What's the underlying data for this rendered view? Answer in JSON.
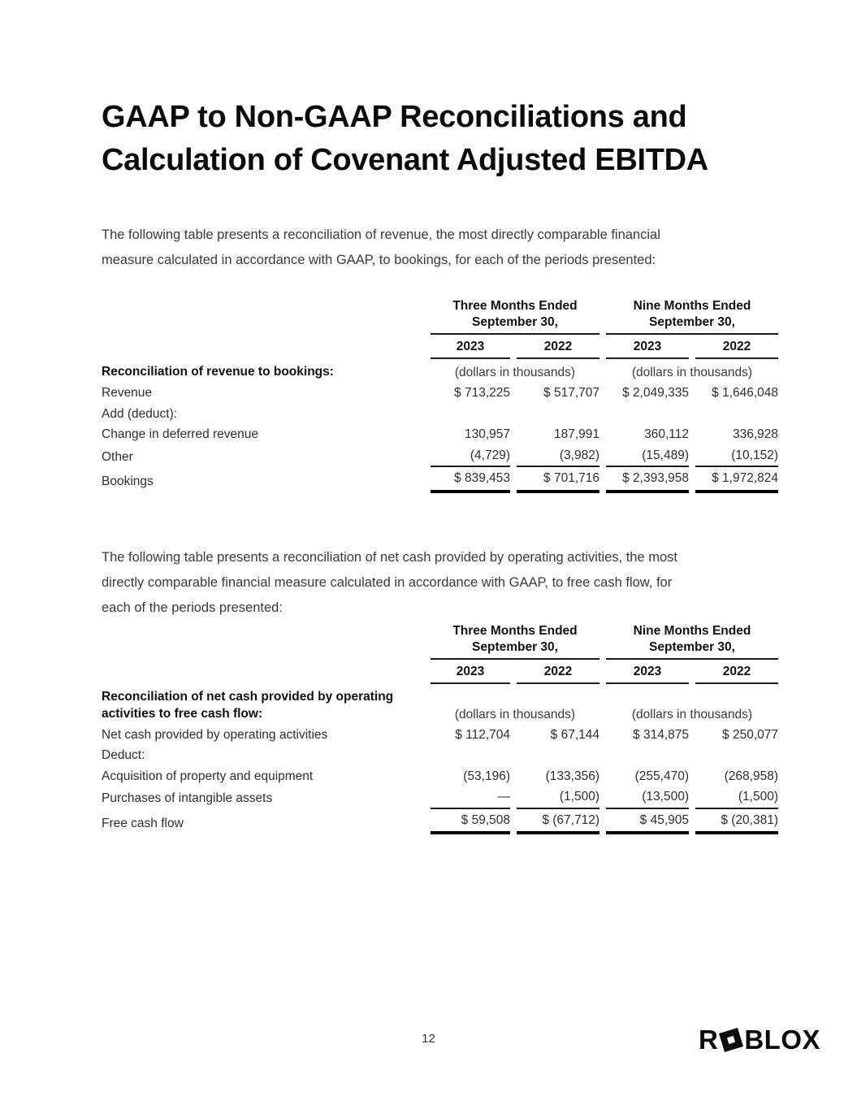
{
  "document": {
    "title": "GAAP to Non-GAAP Reconciliations and\nCalculation of Covenant Adjusted EBITDA",
    "intro_bookings": "The following table presents a reconciliation of revenue, the most directly comparable financial\nmeasure calculated in accordance with GAAP, to bookings, for each of the periods presented:",
    "intro_free_cash_flow": "The following table presents a reconciliation of net cash provided by operating activities, the most\ndirectly comparable financial measure calculated in accordance with GAAP, to free cash flow, for\neach of the periods presented:"
  },
  "colors": {
    "background": "#ffffff",
    "heading_ink": "#0b0b0b",
    "body_ink": "#3a3a3a",
    "rule": "#1c1c1c"
  },
  "tables": {
    "bookings": {
      "col_groups": [
        {
          "header": "Three Months Ended\nSeptember 30,",
          "unit": "(dollars in thousands)"
        },
        {
          "header": "Nine Months Ended\nSeptember 30,",
          "unit": "(dollars in thousands)"
        }
      ],
      "years": [
        "2023",
        "2022",
        "2023",
        "2022"
      ],
      "section_label": "Reconciliation of revenue to bookings:",
      "rows": [
        {
          "label": "Revenue",
          "values": [
            "$ 713,225",
            "$ 517,707",
            "$ 2,049,335",
            "$ 1,646,048"
          ]
        },
        {
          "label": "Add (deduct):",
          "values": [
            "",
            "",
            "",
            ""
          ]
        },
        {
          "label": "Change in deferred revenue",
          "values": [
            "130,957",
            "187,991",
            "360,112",
            "336,928"
          ]
        },
        {
          "label": "Other",
          "values": [
            "(4,729)",
            "(3,982)",
            "(15,489)",
            "(10,152)"
          ]
        },
        {
          "label": "Bookings",
          "values": [
            "$ 839,453",
            "$ 701,716",
            "$ 2,393,958",
            "$ 1,972,824"
          ]
        }
      ]
    },
    "free_cash_flow": {
      "col_groups": [
        {
          "header": "Three Months Ended\nSeptember 30,",
          "unit": "(dollars in thousands)"
        },
        {
          "header": "Nine Months Ended\nSeptember 30,",
          "unit": "(dollars in thousands)"
        }
      ],
      "years": [
        "2023",
        "2022",
        "2023",
        "2022"
      ],
      "section_label": "Reconciliation of net cash provided by operating\nactivities to free cash flow:",
      "rows": [
        {
          "label": "Net cash provided by operating activities",
          "values": [
            "$ 112,704",
            "$ 67,144",
            "$ 314,875",
            "$ 250,077"
          ]
        },
        {
          "label": "Deduct:",
          "values": [
            "",
            "",
            "",
            ""
          ]
        },
        {
          "label": "Acquisition of property and equipment",
          "values": [
            "(53,196)",
            "(133,356)",
            "(255,470)",
            "(268,958)"
          ]
        },
        {
          "label": "Purchases of intangible assets",
          "values": [
            "—",
            "(1,500)",
            "(13,500)",
            "(1,500)"
          ]
        },
        {
          "label": "Free cash flow",
          "values": [
            "$ 59,508",
            "$ (67,712)",
            "$ 45,905",
            "$ (20,381)"
          ]
        }
      ]
    }
  },
  "footer": {
    "page_number": "12",
    "logo_prefix": "R",
    "logo_suffix": "BLOX",
    "logo_icon": "roblox-tilted-square"
  }
}
